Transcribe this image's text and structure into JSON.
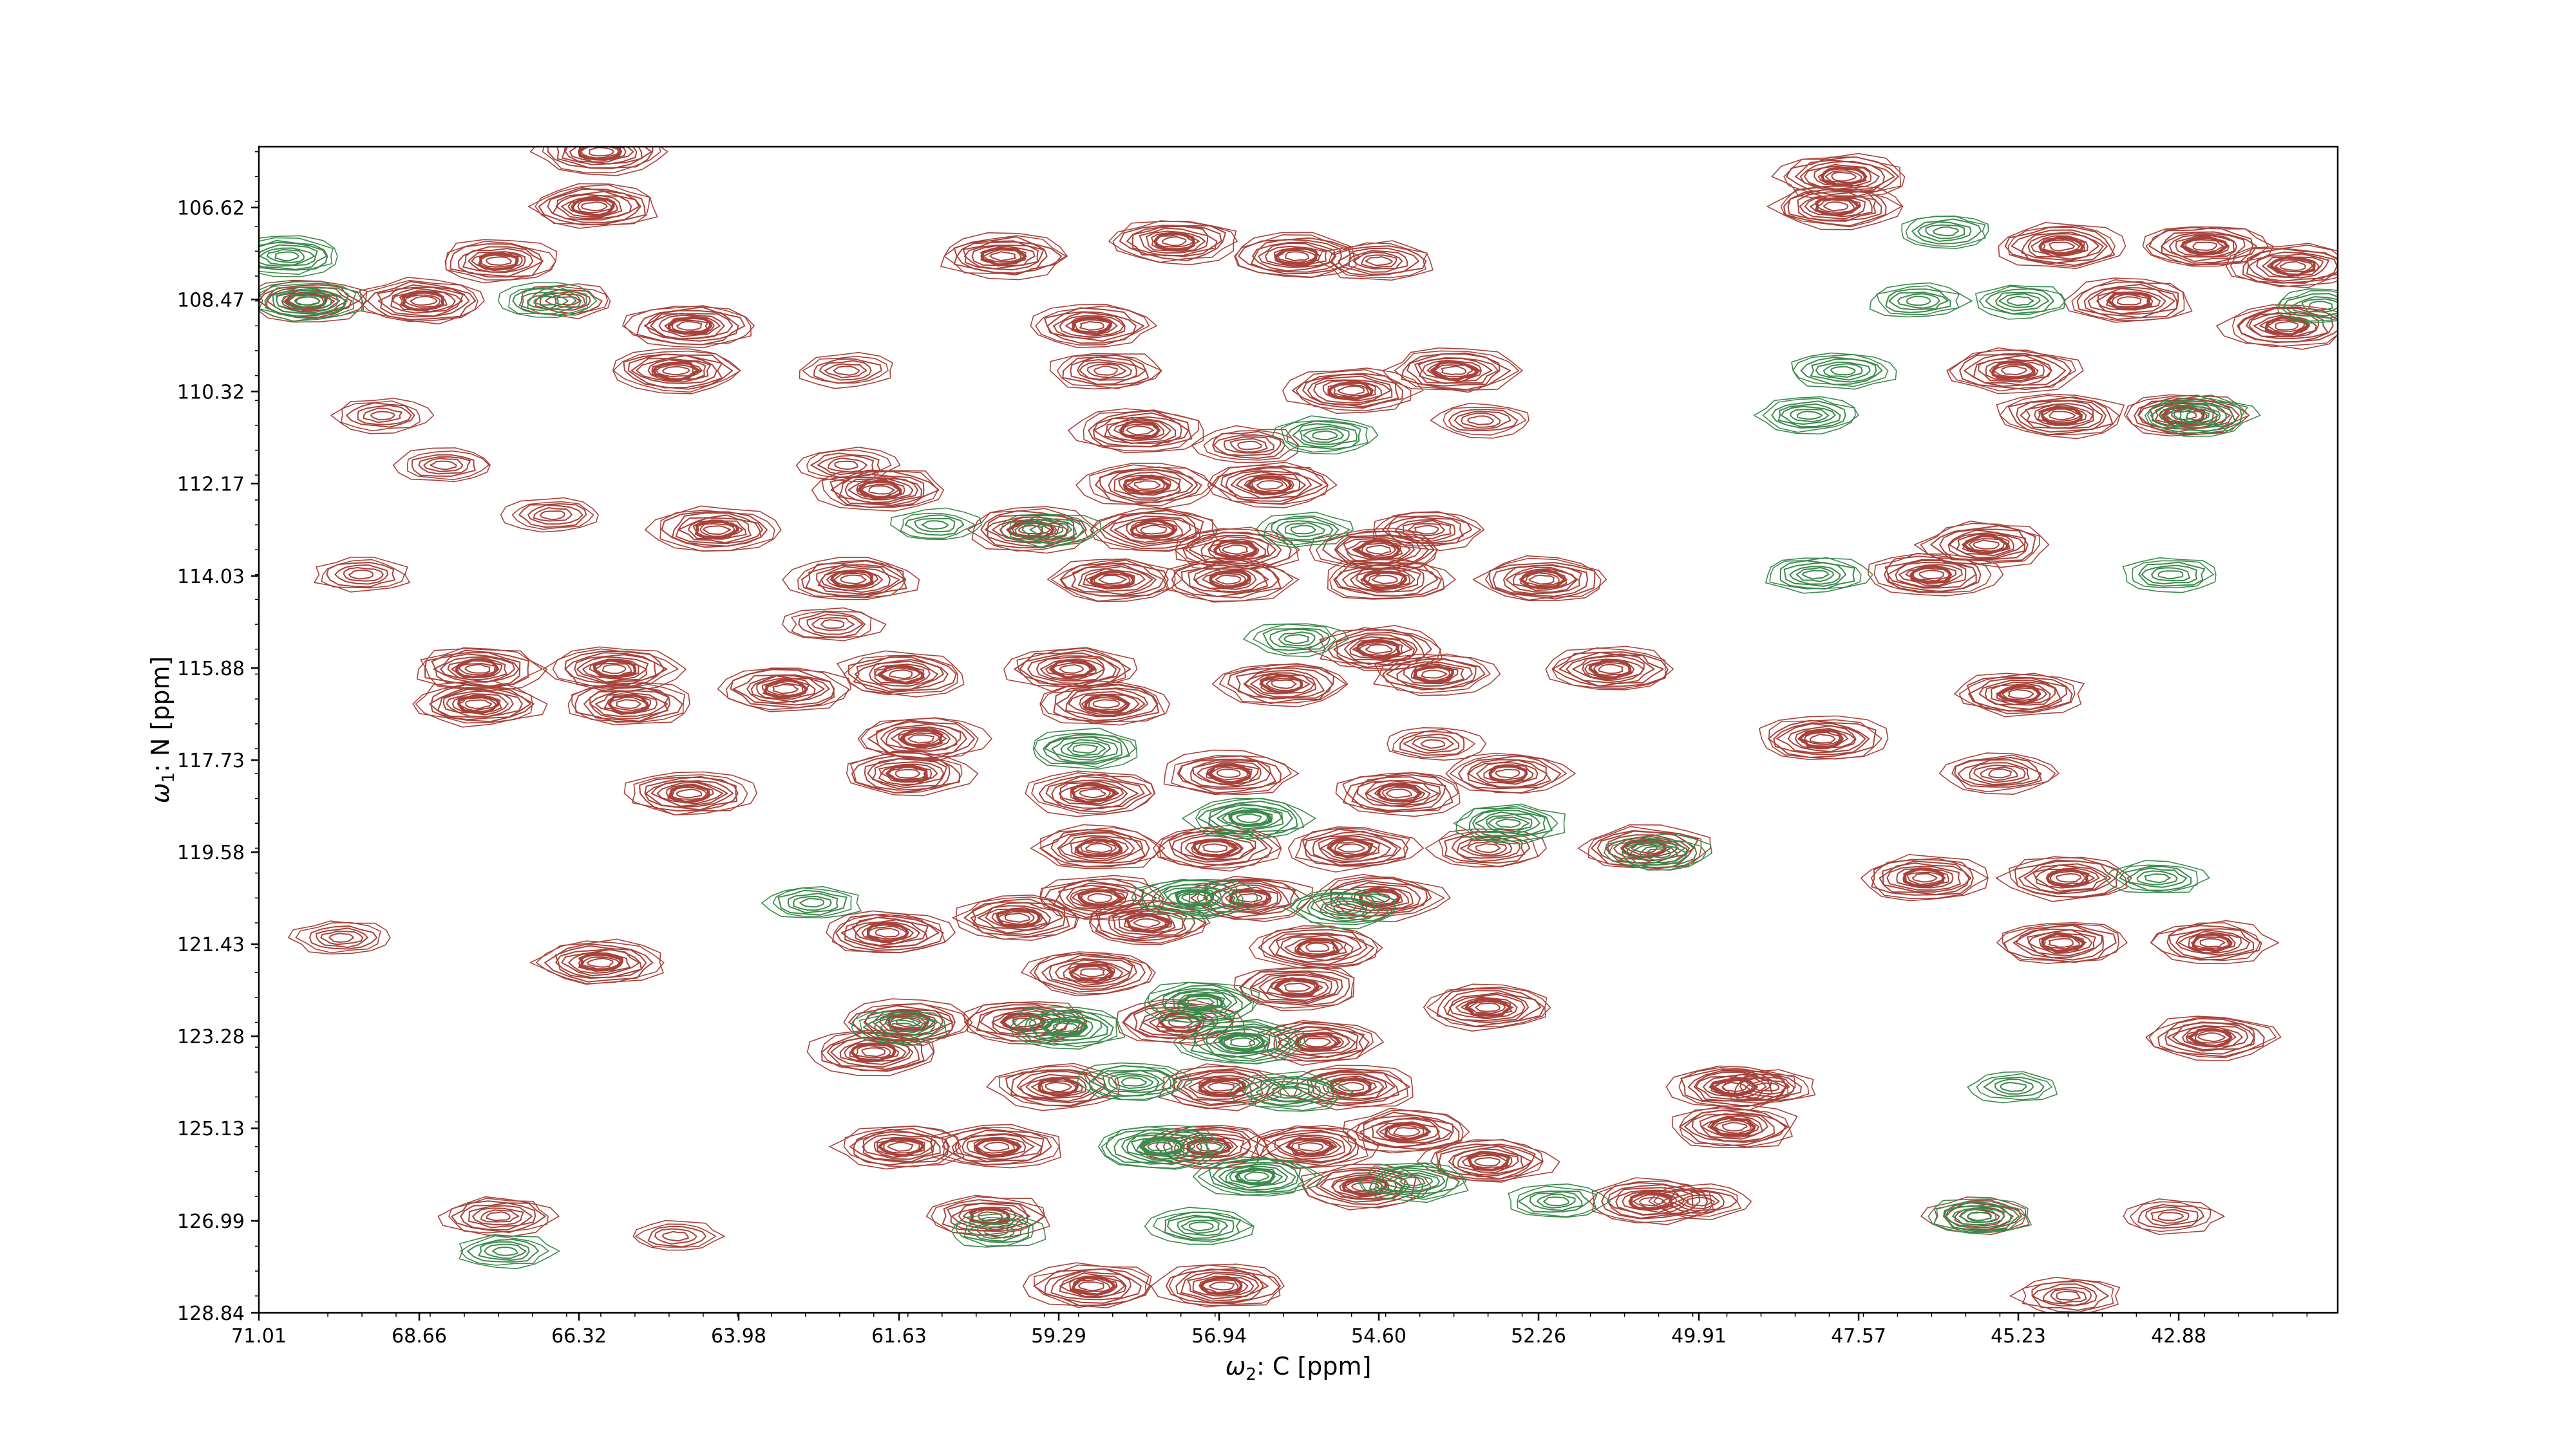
{
  "chart_data": {
    "type": "contour",
    "title": "",
    "xlabel": {
      "symbol": "ω",
      "sub": "2",
      "text": ": C [ppm]"
    },
    "ylabel": {
      "symbol": "ω",
      "sub": "1",
      "text": ": N [ppm]"
    },
    "x_ticks": [
      "71.01",
      "68.66",
      "66.32",
      "63.98",
      "61.63",
      "59.29",
      "56.94",
      "54.60",
      "52.26",
      "49.91",
      "47.57",
      "45.23",
      "42.88"
    ],
    "y_ticks": [
      "106.62",
      "108.47",
      "110.32",
      "112.17",
      "114.03",
      "115.88",
      "117.73",
      "119.58",
      "121.43",
      "123.28",
      "125.13",
      "126.99",
      "128.84"
    ],
    "xlim": [
      71.01,
      40.55
    ],
    "ylim": [
      128.84,
      105.4
    ],
    "x_reversed": true,
    "y_reversed": true,
    "grid": false,
    "legend": "none",
    "colors": {
      "positive": "#a8423a",
      "negative": "#3c8a4c"
    },
    "series": [
      {
        "sign": "positive",
        "peaks": [
          [
            66.0,
            105.5,
            1.0
          ],
          [
            66.1,
            106.6,
            1.0
          ],
          [
            67.5,
            107.7,
            0.9
          ],
          [
            68.6,
            108.5,
            1.0
          ],
          [
            70.3,
            108.5,
            0.9
          ],
          [
            66.5,
            108.5,
            0.6
          ],
          [
            64.7,
            109.0,
            1.0
          ],
          [
            64.9,
            109.9,
            1.0
          ],
          [
            62.4,
            109.9,
            0.6
          ],
          [
            60.1,
            107.6,
            1.0
          ],
          [
            58.8,
            109.0,
            0.9
          ],
          [
            58.6,
            109.9,
            0.8
          ],
          [
            57.6,
            107.3,
            1.0
          ],
          [
            55.8,
            107.6,
            1.0
          ],
          [
            54.6,
            107.7,
            0.8
          ],
          [
            55.0,
            110.3,
            1.0
          ],
          [
            53.5,
            109.9,
            1.0
          ],
          [
            58.1,
            111.1,
            1.0
          ],
          [
            58.0,
            112.2,
            1.0
          ],
          [
            56.2,
            112.2,
            1.0
          ],
          [
            61.9,
            112.3,
            1.0
          ],
          [
            64.3,
            113.1,
            1.0
          ],
          [
            59.7,
            113.1,
            1.0
          ],
          [
            57.9,
            113.1,
            1.0
          ],
          [
            56.7,
            113.5,
            1.0
          ],
          [
            54.6,
            113.5,
            1.0
          ],
          [
            53.9,
            113.1,
            0.8
          ],
          [
            62.3,
            114.1,
            1.0
          ],
          [
            58.5,
            114.1,
            1.0
          ],
          [
            56.8,
            114.1,
            1.0
          ],
          [
            54.5,
            114.1,
            1.0
          ],
          [
            52.2,
            114.1,
            1.0
          ],
          [
            67.8,
            115.9,
            1.0
          ],
          [
            67.8,
            116.6,
            1.0
          ],
          [
            65.8,
            115.9,
            1.0
          ],
          [
            65.6,
            116.6,
            1.0
          ],
          [
            63.3,
            116.3,
            1.0
          ],
          [
            61.6,
            116.0,
            1.0
          ],
          [
            59.1,
            115.9,
            1.0
          ],
          [
            58.6,
            116.6,
            1.0
          ],
          [
            56.0,
            116.2,
            1.0
          ],
          [
            54.6,
            115.5,
            1.0
          ],
          [
            53.8,
            116.0,
            0.9
          ],
          [
            51.2,
            115.9,
            1.0
          ],
          [
            61.3,
            117.3,
            1.0
          ],
          [
            61.5,
            118.0,
            1.0
          ],
          [
            64.7,
            118.4,
            1.0
          ],
          [
            58.8,
            118.4,
            1.0
          ],
          [
            56.8,
            118.0,
            1.0
          ],
          [
            54.3,
            118.4,
            1.0
          ],
          [
            52.7,
            118.0,
            0.9
          ],
          [
            58.7,
            119.5,
            1.0
          ],
          [
            57.0,
            119.5,
            1.0
          ],
          [
            55.0,
            119.5,
            1.0
          ],
          [
            53.0,
            119.5,
            0.8
          ],
          [
            50.7,
            119.5,
            1.0
          ],
          [
            58.7,
            120.5,
            1.0
          ],
          [
            56.5,
            120.5,
            1.0
          ],
          [
            54.6,
            120.5,
            1.0
          ],
          [
            59.9,
            120.9,
            1.0
          ],
          [
            58.0,
            121.0,
            1.0
          ],
          [
            55.5,
            121.5,
            1.0
          ],
          [
            61.8,
            121.2,
            1.0
          ],
          [
            66.0,
            121.8,
            1.0
          ],
          [
            58.8,
            122.0,
            1.0
          ],
          [
            55.8,
            122.3,
            1.0
          ],
          [
            53.0,
            122.7,
            1.0
          ],
          [
            61.5,
            123.0,
            1.0
          ],
          [
            59.8,
            123.0,
            1.0
          ],
          [
            57.5,
            123.0,
            1.0
          ],
          [
            55.5,
            123.4,
            1.0
          ],
          [
            62.0,
            123.6,
            1.0
          ],
          [
            59.3,
            124.3,
            1.0
          ],
          [
            56.9,
            124.3,
            1.0
          ],
          [
            55.0,
            124.3,
            1.0
          ],
          [
            49.4,
            124.3,
            1.0
          ],
          [
            49.4,
            125.1,
            1.0
          ],
          [
            61.6,
            125.5,
            1.0
          ],
          [
            60.2,
            125.5,
            1.0
          ],
          [
            57.1,
            125.5,
            1.0
          ],
          [
            55.6,
            125.5,
            1.0
          ],
          [
            54.2,
            125.2,
            1.0
          ],
          [
            53.0,
            125.8,
            1.0
          ],
          [
            54.8,
            126.3,
            1.0
          ],
          [
            60.3,
            126.9,
            0.9
          ],
          [
            50.6,
            126.6,
            1.0
          ],
          [
            67.5,
            126.9,
            0.8
          ],
          [
            58.8,
            128.3,
            1.0
          ],
          [
            56.9,
            128.3,
            1.0
          ],
          [
            47.8,
            106.0,
            1.0
          ],
          [
            47.9,
            106.6,
            1.0
          ],
          [
            44.6,
            107.4,
            1.0
          ],
          [
            42.5,
            107.4,
            1.0
          ],
          [
            41.2,
            107.8,
            1.0
          ],
          [
            43.6,
            108.5,
            1.0
          ],
          [
            41.3,
            109.0,
            1.0
          ],
          [
            45.3,
            109.9,
            1.0
          ],
          [
            44.6,
            110.8,
            1.0
          ],
          [
            42.8,
            110.8,
            1.0
          ],
          [
            45.7,
            113.4,
            1.0
          ],
          [
            46.5,
            114.0,
            1.0
          ],
          [
            45.2,
            116.4,
            1.0
          ],
          [
            48.1,
            117.3,
            1.0
          ],
          [
            45.5,
            118.0,
            0.8
          ],
          [
            46.6,
            120.1,
            1.0
          ],
          [
            44.5,
            120.1,
            1.0
          ],
          [
            44.6,
            121.4,
            1.0
          ],
          [
            42.4,
            121.4,
            0.9
          ],
          [
            42.4,
            123.3,
            1.0
          ],
          [
            45.8,
            126.9,
            0.7
          ],
          [
            44.5,
            128.5,
            0.7
          ],
          [
            43.0,
            126.9,
            0.6
          ],
          [
            48.9,
            124.3,
            0.6
          ],
          [
            49.9,
            126.6,
            0.6
          ],
          [
            64.9,
            127.3,
            0.5
          ],
          [
            69.5,
            114.0,
            0.6
          ],
          [
            69.2,
            110.8,
            0.6
          ],
          [
            68.3,
            111.8,
            0.6
          ],
          [
            66.7,
            112.8,
            0.6
          ],
          [
            62.4,
            111.8,
            0.6
          ],
          [
            56.5,
            111.4,
            0.7
          ],
          [
            53.1,
            110.9,
            0.6
          ],
          [
            69.8,
            121.3,
            0.6
          ],
          [
            62.6,
            115.0,
            0.6
          ],
          [
            53.8,
            117.4,
            0.6
          ]
        ]
      },
      {
        "sign": "negative",
        "peaks": [
          [
            70.6,
            107.6,
            0.8
          ],
          [
            70.3,
            108.5,
            0.8
          ],
          [
            66.8,
            108.5,
            0.6
          ],
          [
            55.4,
            111.2,
            0.7
          ],
          [
            55.7,
            113.1,
            0.6
          ],
          [
            59.4,
            113.1,
            0.6
          ],
          [
            61.1,
            113.0,
            0.5
          ],
          [
            55.8,
            115.3,
            0.6
          ],
          [
            58.9,
            117.5,
            0.8
          ],
          [
            56.5,
            118.9,
            0.9
          ],
          [
            57.3,
            120.5,
            0.9
          ],
          [
            55.1,
            120.7,
            0.8
          ],
          [
            52.7,
            119.0,
            0.8
          ],
          [
            50.5,
            119.6,
            0.7
          ],
          [
            57.2,
            122.6,
            0.9
          ],
          [
            59.2,
            123.1,
            0.9
          ],
          [
            56.6,
            123.4,
            1.0
          ],
          [
            55.9,
            124.4,
            0.8
          ],
          [
            58.2,
            124.2,
            0.8
          ],
          [
            57.8,
            125.5,
            1.0
          ],
          [
            56.4,
            126.1,
            0.9
          ],
          [
            54.1,
            126.2,
            0.8
          ],
          [
            57.2,
            127.1,
            0.7
          ],
          [
            61.6,
            123.1,
            0.6
          ],
          [
            62.9,
            120.6,
            0.6
          ],
          [
            60.2,
            127.2,
            0.6
          ],
          [
            67.4,
            127.6,
            0.6
          ],
          [
            52.0,
            126.6,
            0.6
          ],
          [
            46.3,
            107.1,
            0.6
          ],
          [
            46.7,
            108.5,
            0.6
          ],
          [
            45.2,
            108.5,
            0.6
          ],
          [
            47.8,
            109.9,
            0.7
          ],
          [
            48.3,
            110.8,
            0.7
          ],
          [
            42.6,
            110.8,
            0.8
          ],
          [
            48.2,
            114.0,
            0.7
          ],
          [
            43.0,
            114.0,
            0.6
          ],
          [
            43.2,
            120.1,
            0.6
          ],
          [
            45.8,
            126.9,
            0.7
          ],
          [
            45.3,
            124.3,
            0.5
          ],
          [
            40.8,
            108.6,
            0.6
          ]
        ]
      }
    ]
  }
}
